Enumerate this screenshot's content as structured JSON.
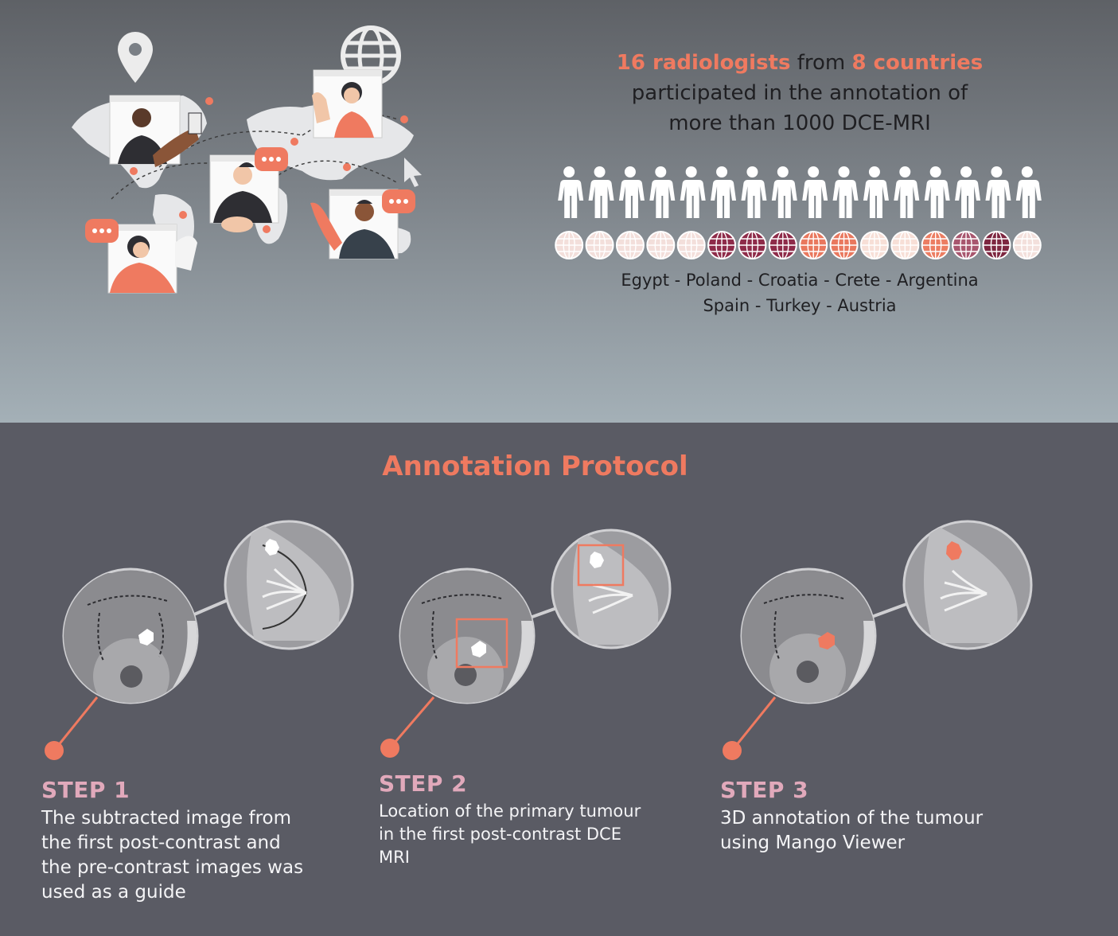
{
  "header": {
    "count": "16 radiologists",
    "mid": " from ",
    "countries_count": "8 countries",
    "line2": "participated in the annotation of",
    "line3": "more than 1000 DCE-MRI"
  },
  "countries_line1": "Egypt - Poland - Croatia - Crete - Argentina",
  "countries_line2": "Spain - Turkey - Austria",
  "radiologists_per_country": [
    "Egypt",
    "Egypt",
    "Egypt",
    "Egypt",
    "Egypt",
    "Poland",
    "Poland",
    "Poland",
    "Croatia",
    "Croatia",
    "Crete",
    "Crete",
    "Argentina",
    "Spain",
    "Turkey",
    "Austria"
  ],
  "globe_colors": [
    "#f3dfdb",
    "#f3dfdb",
    "#f3dfdb",
    "#f3dfdb",
    "#f3dfdb",
    "#8e2b49",
    "#8e2b49",
    "#8e2b49",
    "#e9785e",
    "#e9785e",
    "#f7dfd7",
    "#f7dfd7",
    "#ec7d62",
    "#a8566e",
    "#7d2640",
    "#f3e0dc"
  ],
  "colors": {
    "accent": "#ef7a60",
    "step_title": "#e1a9bb",
    "background_top": "#7d8389",
    "background_bottom": "#5a5b64"
  },
  "protocol": {
    "title": "Annotation Protocol",
    "steps": [
      {
        "title": "STEP 1",
        "lines": [
          "The subtracted image from",
          "the first post-contrast and",
          "the pre-contrast images was",
          "used as a guide"
        ]
      },
      {
        "title": "STEP 2",
        "lines": [
          "Location of the primary tumour",
          "in the first post-contrast DCE",
          "MRI"
        ]
      },
      {
        "title": "STEP 3",
        "lines": [
          "3D annotation of the tumour",
          "using Mango Viewer"
        ]
      }
    ]
  },
  "icons": [
    "map-pin-icon",
    "globe-icon",
    "world-map-illustration",
    "person-icon",
    "globe-icon",
    "breast-mri-illustration"
  ]
}
